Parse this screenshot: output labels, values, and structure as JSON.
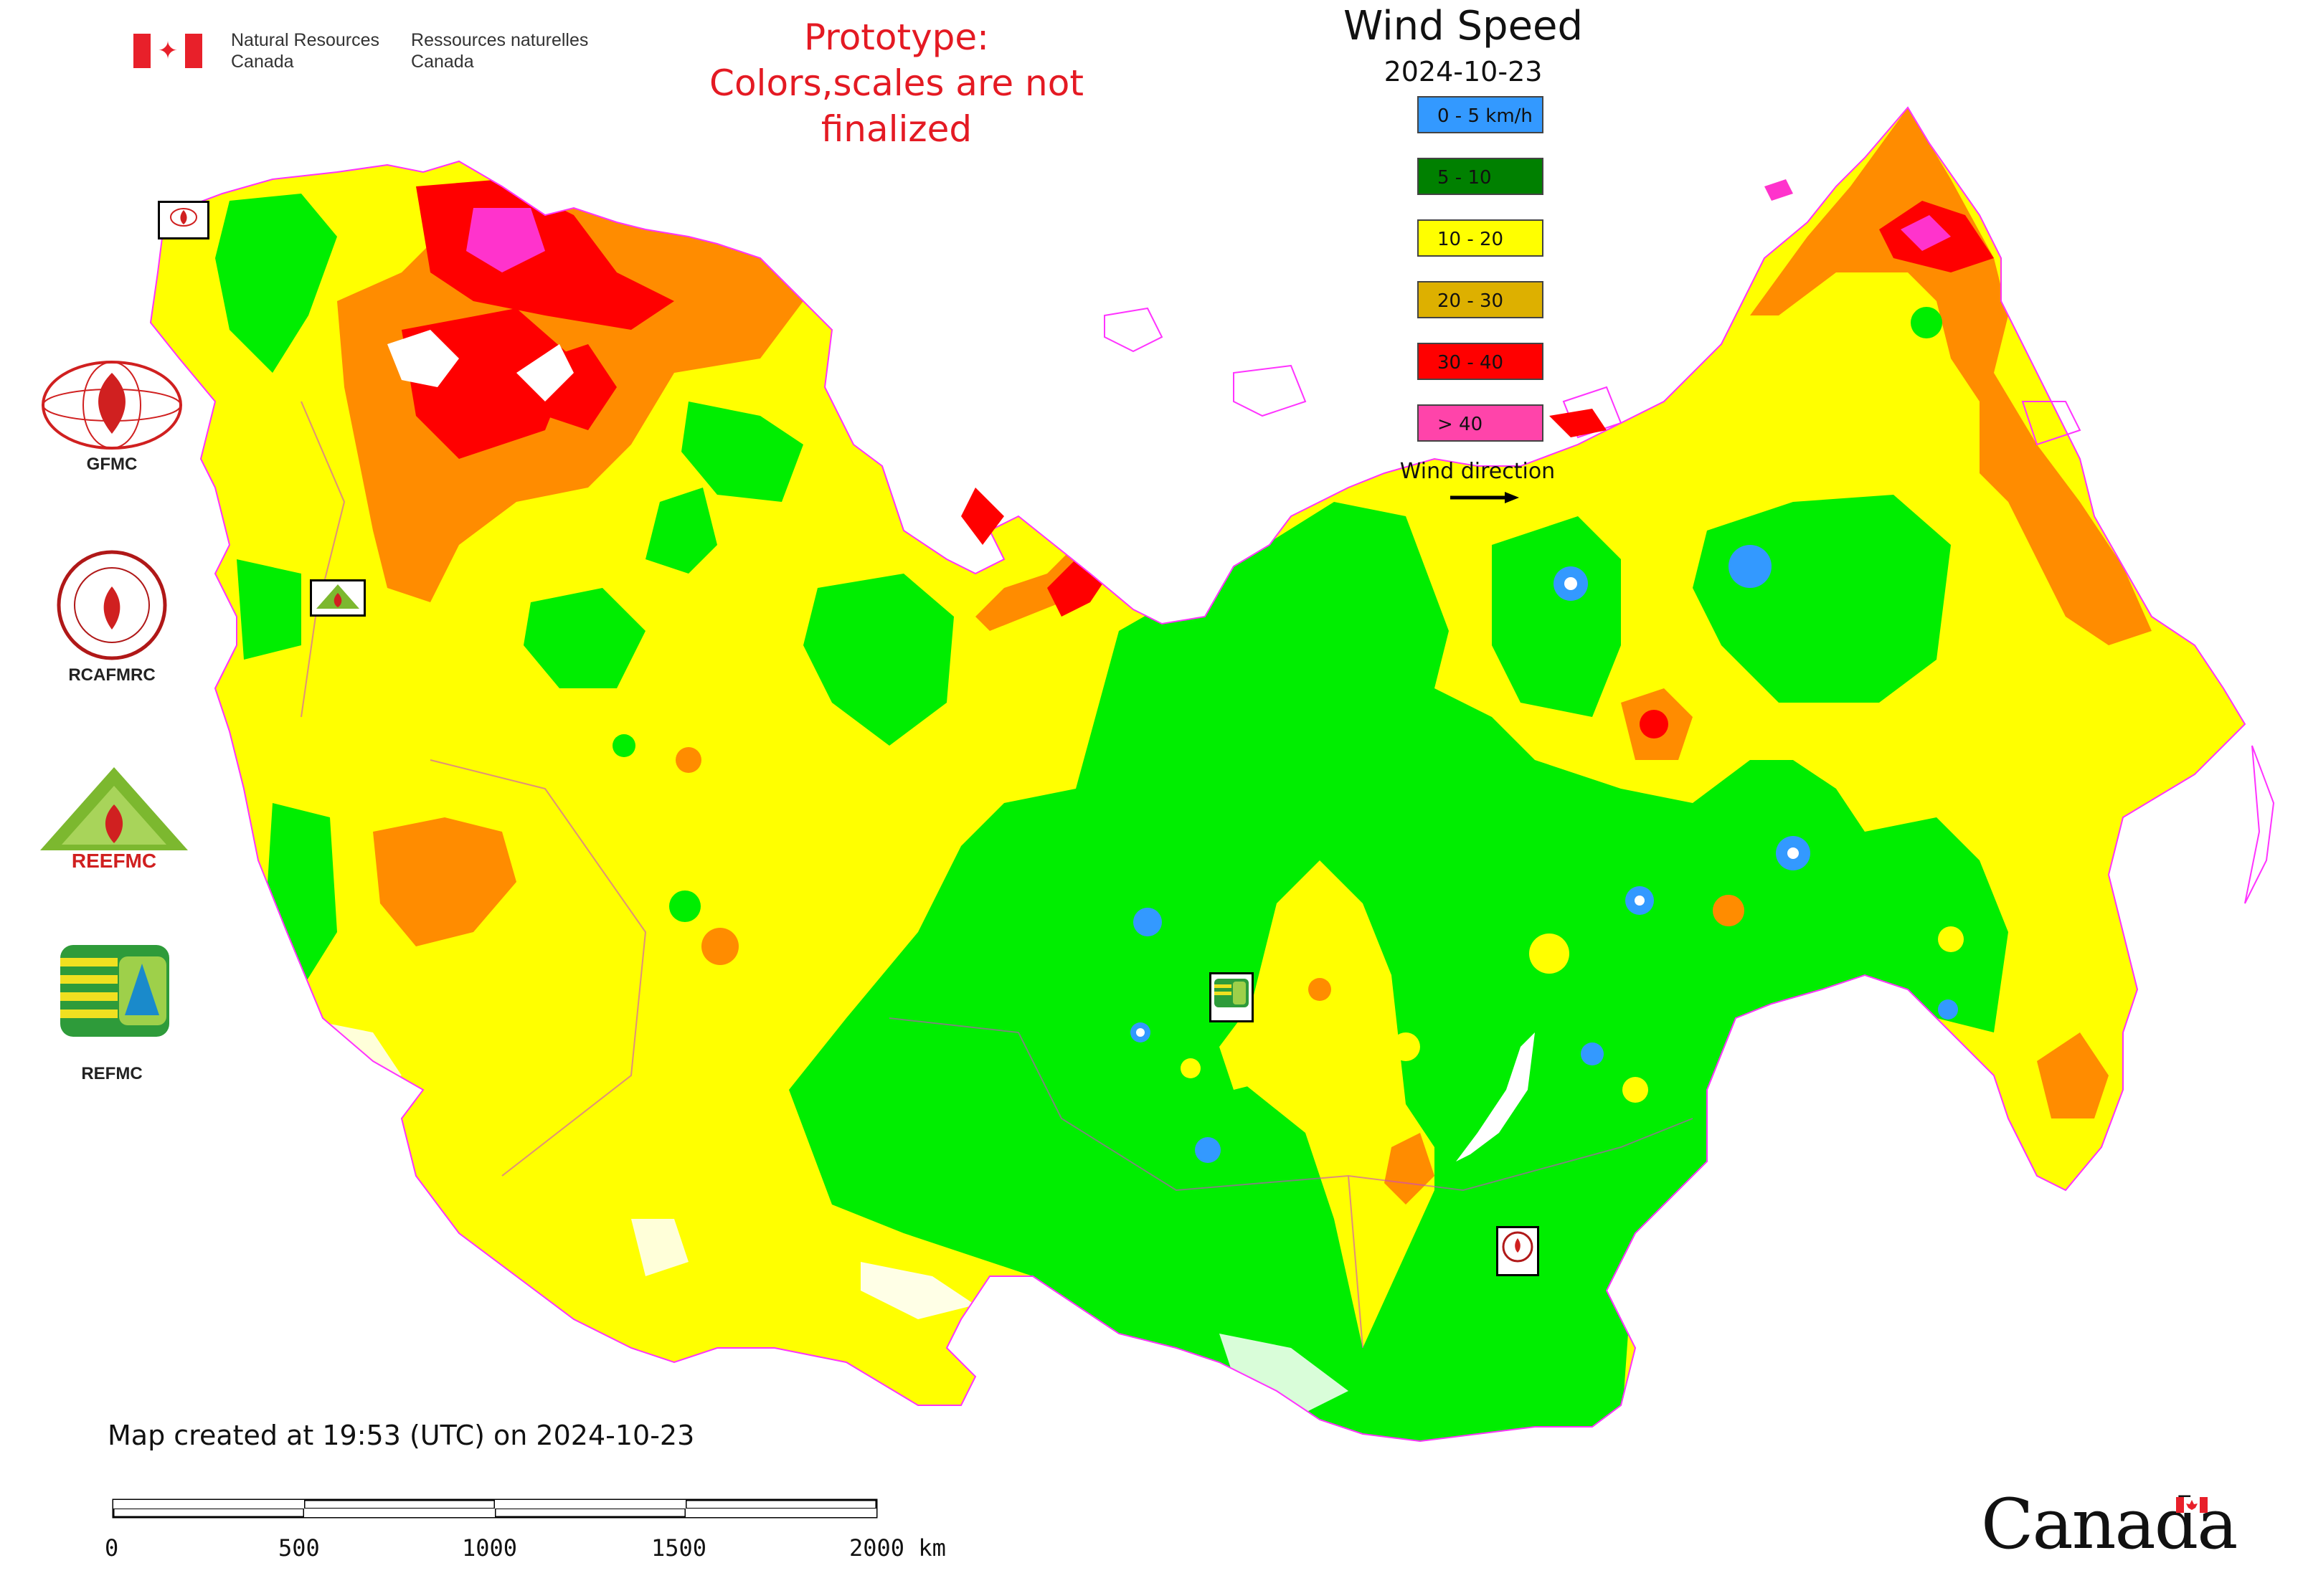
{
  "header": {
    "nrcan_en": [
      "Natural Resources",
      "Canada"
    ],
    "nrcan_fr": [
      "Ressources naturelles",
      "Canada"
    ],
    "prototype_line1": "Prototype:",
    "prototype_line2": "Colors,scales are not finalized"
  },
  "legend": {
    "title": "Wind Speed",
    "date": "2024-10-23",
    "items": [
      {
        "label": "0 - 5 km/h",
        "color": "#3399ff"
      },
      {
        "label": "5 - 10",
        "color": "#008000"
      },
      {
        "label": "10 - 20",
        "color": "#ffff00"
      },
      {
        "label": "20 - 30",
        "color": "#ddb000"
      },
      {
        "label": "30 - 40",
        "color": "#ff0000"
      },
      {
        "label": "> 40",
        "color": "#ff44aa"
      }
    ],
    "wind_direction_label": "Wind direction"
  },
  "partners": [
    {
      "name": "GFMC",
      "icon": "gfmc-logo"
    },
    {
      "name": "RCAFMRC",
      "icon": "rcafmrc-logo"
    },
    {
      "name": "REEFMC",
      "icon": "reefmc-logo"
    },
    {
      "name": "REFMC",
      "icon": "refmc-logo"
    }
  ],
  "map_markers": [
    "GFMC",
    "REEFMC",
    "REFMC",
    "RCAFMRC"
  ],
  "map_colors": {
    "green": "#00ee00",
    "yellow": "#ffff00",
    "orange": "#ff8c00",
    "red": "#ff0000",
    "magenta": "#ff33cc",
    "blue": "#3399ff",
    "border": "#ff33ff"
  },
  "footer": {
    "created": "Map created at 19:53 (UTC) on 2024-10-23",
    "scale_labels": [
      "0",
      "500",
      "1000",
      "1500",
      "2000 km"
    ],
    "wordmark": "Canada"
  }
}
